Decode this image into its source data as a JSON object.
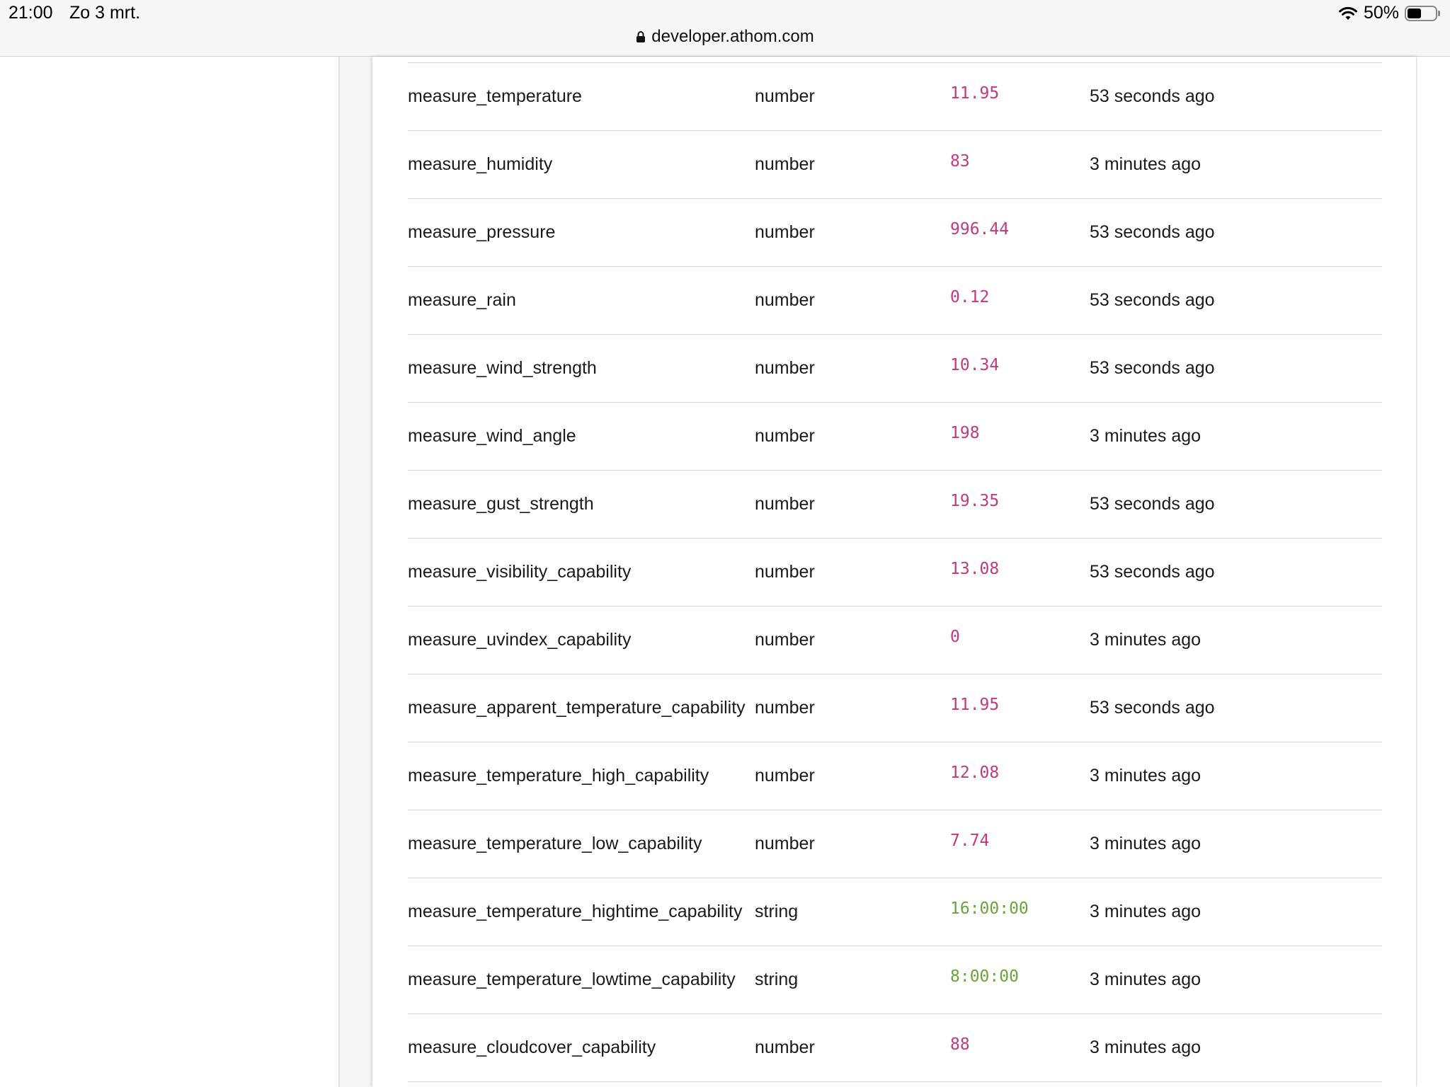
{
  "status_bar": {
    "time": "21:00",
    "date": "Zo 3 mrt.",
    "battery": "50%",
    "battery_level": 0.5
  },
  "url_bar": {
    "url": "developer.athom.com"
  },
  "capabilities": [
    {
      "name": "measure_temperature",
      "type": "number",
      "value": "11.95",
      "updated": "53 seconds ago"
    },
    {
      "name": "measure_humidity",
      "type": "number",
      "value": "83",
      "updated": "3 minutes ago"
    },
    {
      "name": "measure_pressure",
      "type": "number",
      "value": "996.44",
      "updated": "53 seconds ago"
    },
    {
      "name": "measure_rain",
      "type": "number",
      "value": "0.12",
      "updated": "53 seconds ago"
    },
    {
      "name": "measure_wind_strength",
      "type": "number",
      "value": "10.34",
      "updated": "53 seconds ago"
    },
    {
      "name": "measure_wind_angle",
      "type": "number",
      "value": "198",
      "updated": "3 minutes ago"
    },
    {
      "name": "measure_gust_strength",
      "type": "number",
      "value": "19.35",
      "updated": "53 seconds ago"
    },
    {
      "name": "measure_visibility_capability",
      "type": "number",
      "value": "13.08",
      "updated": "53 seconds ago"
    },
    {
      "name": "measure_uvindex_capability",
      "type": "number",
      "value": "0",
      "updated": "3 minutes ago"
    },
    {
      "name": "measure_apparent_temperature_capability",
      "type": "number",
      "value": "11.95",
      "updated": "53 seconds ago"
    },
    {
      "name": "measure_temperature_high_capability",
      "type": "number",
      "value": "12.08",
      "updated": "3 minutes ago"
    },
    {
      "name": "measure_temperature_low_capability",
      "type": "number",
      "value": "7.74",
      "updated": "3 minutes ago"
    },
    {
      "name": "measure_temperature_hightime_capability",
      "type": "string",
      "value": "16:00:00",
      "updated": "3 minutes ago"
    },
    {
      "name": "measure_temperature_lowtime_capability",
      "type": "string",
      "value": "8:00:00",
      "updated": "3 minutes ago"
    },
    {
      "name": "measure_cloudcover_capability",
      "type": "number",
      "value": "88",
      "updated": "3 minutes ago"
    }
  ],
  "colors": {
    "number_value": "#c2397e",
    "string_value": "#6aa33a"
  }
}
